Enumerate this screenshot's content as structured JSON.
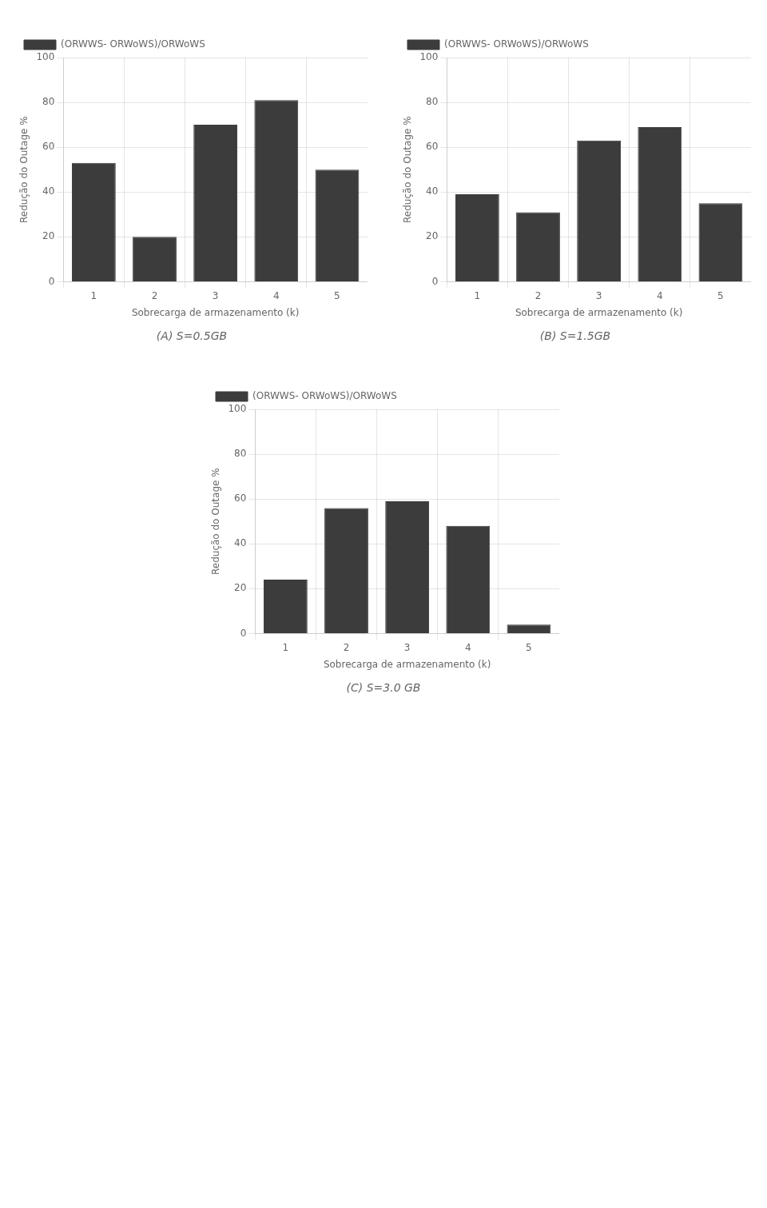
{
  "chart_data": [
    {
      "type": "bar",
      "title": "(A) S=0.5GB",
      "categories": [
        1,
        2,
        3,
        4,
        5
      ],
      "series": [
        {
          "name": "(ORWWS- ORWoWS)/ORWoWS",
          "color": "#3c3c3c",
          "values": [
            53,
            20,
            70,
            81,
            50
          ]
        }
      ],
      "xlabel": "Sobrecarga de armazenamento (k)",
      "ylabel": "Redução do Outage %",
      "ylim": [
        0,
        100
      ],
      "yticks": [
        0,
        20,
        40,
        60,
        80,
        100
      ],
      "grid": true,
      "legend": "upper left"
    },
    {
      "type": "bar",
      "title": "(B) S=1.5GB",
      "categories": [
        1,
        2,
        3,
        4,
        5
      ],
      "series": [
        {
          "name": "(ORWWS- ORWoWS)/ORWoWS",
          "color": "#3c3c3c",
          "values": [
            39,
            31,
            63,
            69,
            35
          ]
        }
      ],
      "xlabel": "Sobrecarga de armazenamento (k)",
      "ylabel": "Redução do Outage %",
      "ylim": [
        0,
        100
      ],
      "yticks": [
        0,
        20,
        40,
        60,
        80,
        100
      ],
      "grid": true,
      "legend": "upper left"
    },
    {
      "type": "bar",
      "title": "(C) S=3.0 GB",
      "categories": [
        1,
        2,
        3,
        4,
        5
      ],
      "series": [
        {
          "name": "(ORWWS- ORWoWS)/ORWoWS",
          "color": "#3c3c3c",
          "values": [
            24,
            56,
            59,
            48,
            4
          ]
        }
      ],
      "xlabel": "Sobrecarga de armazenamento (k)",
      "ylabel": "Redução do Outage %",
      "ylim": [
        0,
        100
      ],
      "yticks": [
        0,
        20,
        40,
        60,
        80,
        100
      ],
      "grid": true,
      "legend": "upper left"
    }
  ]
}
